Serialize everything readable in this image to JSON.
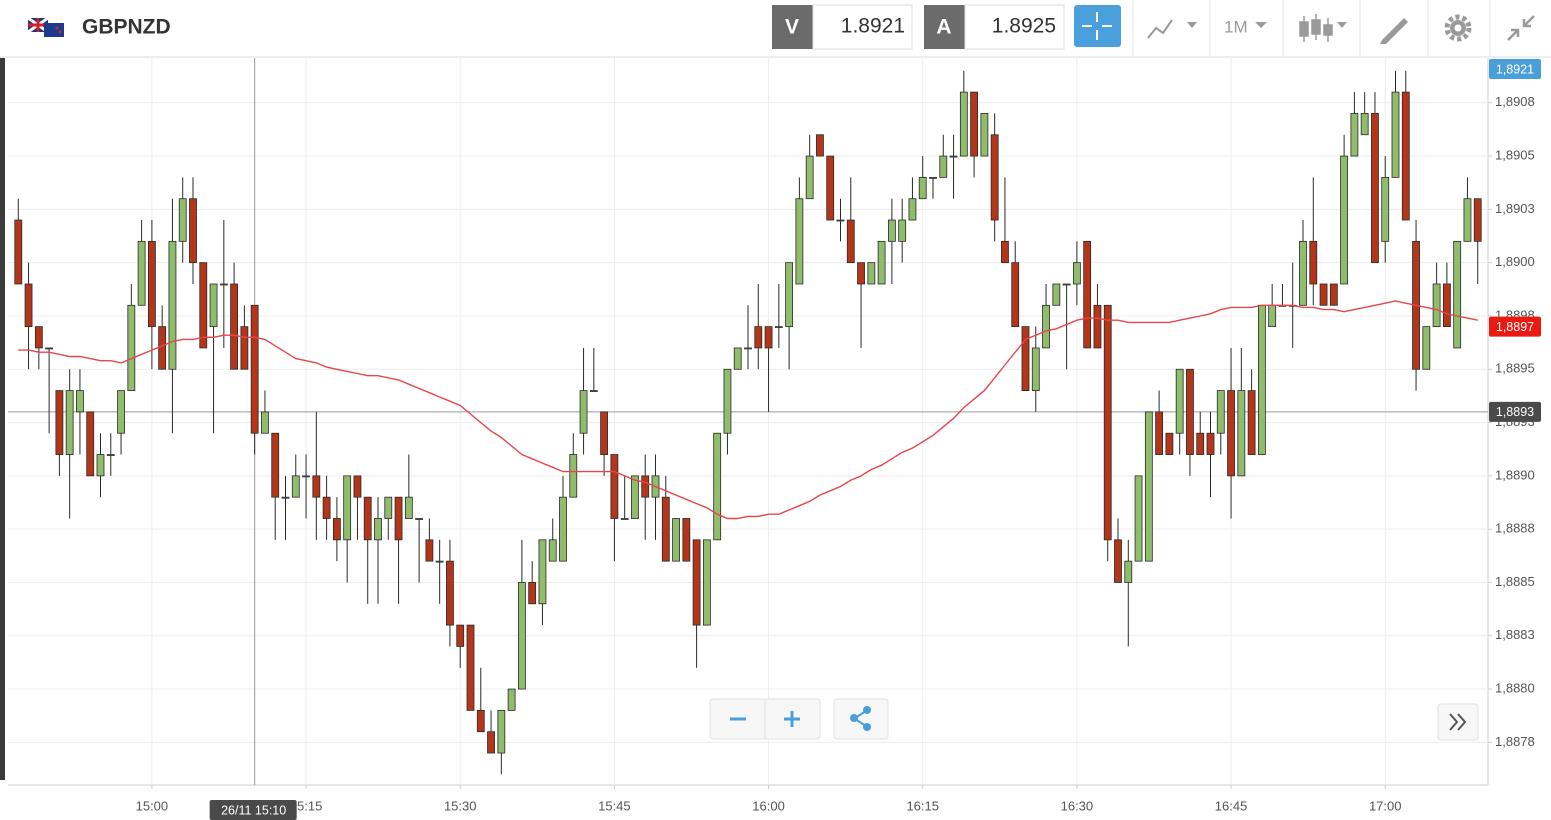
{
  "header": {
    "symbol": "GBPNZD",
    "sell_label": "V",
    "sell_price": "1.8921",
    "buy_label": "A",
    "buy_price": "1.8925",
    "timeframe": "1M"
  },
  "chart_data": {
    "type": "candlestick",
    "x": [
      "14:47",
      "14:48",
      "14:49",
      "14:50",
      "14:51",
      "14:52",
      "14:53",
      "14:54",
      "14:55",
      "14:56",
      "14:57",
      "14:58",
      "14:59",
      "15:00",
      "15:01",
      "15:02",
      "15:03",
      "15:04",
      "15:05",
      "15:06",
      "15:07",
      "15:08",
      "15:09",
      "15:10",
      "15:11",
      "15:12",
      "15:13",
      "15:14",
      "15:15",
      "15:16",
      "15:17",
      "15:18",
      "15:19",
      "15:20",
      "15:21",
      "15:22",
      "15:23",
      "15:24",
      "15:25",
      "15:26",
      "15:27",
      "15:28",
      "15:29",
      "15:30",
      "15:31",
      "15:32",
      "15:33",
      "15:34",
      "15:35",
      "15:36",
      "15:37",
      "15:38",
      "15:39",
      "15:40",
      "15:41",
      "15:42",
      "15:43",
      "15:44",
      "15:45",
      "15:46",
      "15:47",
      "15:48",
      "15:49",
      "15:50",
      "15:51",
      "15:52",
      "15:53",
      "15:54",
      "15:55",
      "15:56",
      "15:57",
      "15:58",
      "15:59",
      "16:00",
      "16:01",
      "16:02",
      "16:03",
      "16:04",
      "16:05",
      "16:06",
      "16:07",
      "16:08",
      "16:09",
      "16:10",
      "16:11",
      "16:12",
      "16:13",
      "16:14",
      "16:15",
      "16:16",
      "16:17",
      "16:18",
      "16:19",
      "16:20",
      "16:21",
      "16:22",
      "16:23",
      "16:24",
      "16:25",
      "16:26",
      "16:27",
      "16:28",
      "16:29",
      "16:30",
      "16:31",
      "16:32",
      "16:33",
      "16:34",
      "16:35",
      "16:36",
      "16:37",
      "16:38",
      "16:39",
      "16:40",
      "16:41",
      "16:42",
      "16:43",
      "16:44",
      "16:45",
      "16:46",
      "16:47",
      "16:48",
      "16:49",
      "16:50",
      "16:51",
      "16:52",
      "16:53",
      "16:54",
      "16:55",
      "16:56",
      "16:57",
      "16:58",
      "16:59",
      "17:00",
      "17:01",
      "17:02",
      "17:03",
      "17:04",
      "17:05",
      "17:06",
      "17:07",
      "17:08",
      "17:09"
    ],
    "open": [
      1.8902,
      1.8899,
      1.8897,
      1.8896,
      1.8894,
      1.8891,
      1.8893,
      1.8893,
      1.889,
      1.8891,
      1.8892,
      1.8894,
      1.8898,
      1.8901,
      1.8897,
      1.8895,
      1.8901,
      1.8903,
      1.89,
      1.8897,
      1.8899,
      1.8899,
      1.8897,
      1.8898,
      1.8892,
      1.8892,
      1.8889,
      1.8889,
      1.889,
      1.889,
      1.8889,
      1.8888,
      1.8887,
      1.889,
      1.8889,
      1.8887,
      1.8888,
      1.8889,
      1.8888,
      1.8888,
      1.8887,
      1.8886,
      1.8886,
      1.8883,
      1.8883,
      1.8879,
      1.8878,
      1.8877,
      1.8879,
      1.888,
      1.8885,
      1.8884,
      1.8886,
      1.8886,
      1.8889,
      1.8892,
      1.8894,
      1.8893,
      1.8891,
      1.8888,
      1.8888,
      1.889,
      1.8889,
      1.8889,
      1.8886,
      1.8888,
      1.8887,
      1.8883,
      1.8887,
      1.8892,
      1.8895,
      1.8896,
      1.8897,
      1.8897,
      1.8897,
      1.8897,
      1.8899,
      1.8903,
      1.8906,
      1.8905,
      1.8902,
      1.8902,
      1.89,
      1.8899,
      1.8899,
      1.8901,
      1.8901,
      1.8902,
      1.8903,
      1.8904,
      1.8904,
      1.8905,
      1.8905,
      1.8908,
      1.8905,
      1.8906,
      1.8901,
      1.89,
      1.8897,
      1.8894,
      1.8896,
      1.8898,
      1.8899,
      1.8899,
      1.8901,
      1.8898,
      1.8898,
      1.8887,
      1.8885,
      1.8886,
      1.8886,
      1.8893,
      1.8892,
      1.8892,
      1.8895,
      1.8892,
      1.8892,
      1.8892,
      1.8894,
      1.889,
      1.8894,
      1.8891,
      1.8897,
      1.8898,
      1.8898,
      1.8898,
      1.8901,
      1.8899,
      1.8899,
      1.8899,
      1.8905,
      1.8906,
      1.8907,
      1.8901,
      1.8904,
      1.8908,
      1.8901,
      1.8895,
      1.8897,
      1.8899,
      1.8896,
      1.8901,
      1.8903
    ],
    "high": [
      1.8903,
      1.89,
      1.8897,
      1.8896,
      1.8894,
      1.8895,
      1.8895,
      1.8893,
      1.8892,
      1.8892,
      1.8894,
      1.8899,
      1.8902,
      1.8902,
      1.8898,
      1.8903,
      1.8904,
      1.8904,
      1.89,
      1.8899,
      1.8902,
      1.89,
      1.8898,
      1.8898,
      1.8894,
      1.8892,
      1.889,
      1.8891,
      1.8891,
      1.8893,
      1.889,
      1.8889,
      1.889,
      1.889,
      1.8889,
      1.8889,
      1.8889,
      1.8889,
      1.8891,
      1.8888,
      1.8888,
      1.8887,
      1.8887,
      1.8883,
      1.8883,
      1.8881,
      1.8879,
      1.8879,
      1.888,
      1.8887,
      1.8886,
      1.8887,
      1.8888,
      1.889,
      1.8892,
      1.8896,
      1.8896,
      1.8893,
      1.8891,
      1.889,
      1.889,
      1.8891,
      1.8891,
      1.889,
      1.8888,
      1.8888,
      1.8887,
      1.8887,
      1.8892,
      1.8895,
      1.8896,
      1.8898,
      1.8899,
      1.8897,
      1.8899,
      1.89,
      1.8904,
      1.8906,
      1.8906,
      1.8905,
      1.8903,
      1.8904,
      1.89,
      1.89,
      1.8901,
      1.8903,
      1.8903,
      1.8904,
      1.8905,
      1.8904,
      1.8906,
      1.8906,
      1.8909,
      1.8908,
      1.8907,
      1.8907,
      1.8904,
      1.8901,
      1.8897,
      1.8897,
      1.8899,
      1.8899,
      1.8899,
      1.8901,
      1.8901,
      1.8899,
      1.8898,
      1.8888,
      1.8887,
      1.889,
      1.8893,
      1.8894,
      1.8892,
      1.8895,
      1.8895,
      1.8893,
      1.8893,
      1.8894,
      1.8896,
      1.8896,
      1.8895,
      1.8898,
      1.8899,
      1.8899,
      1.89,
      1.8902,
      1.8904,
      1.8899,
      1.8899,
      1.8906,
      1.8908,
      1.8908,
      1.8908,
      1.8905,
      1.8909,
      1.8909,
      1.8902,
      1.8897,
      1.89,
      1.89,
      1.8901,
      1.8904,
      1.8903
    ],
    "low": [
      1.8899,
      1.8895,
      1.8895,
      1.8892,
      1.889,
      1.8888,
      1.8891,
      1.889,
      1.8889,
      1.889,
      1.8891,
      1.8894,
      1.8898,
      1.8895,
      1.8895,
      1.8892,
      1.89,
      1.8899,
      1.8896,
      1.8892,
      1.8896,
      1.8895,
      1.8895,
      1.8891,
      1.8892,
      1.8887,
      1.8887,
      1.8889,
      1.8888,
      1.8887,
      1.8887,
      1.8886,
      1.8885,
      1.8887,
      1.8884,
      1.8884,
      1.8887,
      1.8884,
      1.8888,
      1.8885,
      1.8886,
      1.8884,
      1.8882,
      1.8881,
      1.8879,
      1.8878,
      1.8877,
      1.8876,
      1.8879,
      1.888,
      1.8884,
      1.8883,
      1.8886,
      1.8886,
      1.8889,
      1.8891,
      1.8894,
      1.889,
      1.8886,
      1.8888,
      1.8888,
      1.8887,
      1.8887,
      1.8886,
      1.8886,
      1.8886,
      1.8881,
      1.8883,
      1.8887,
      1.8891,
      1.8895,
      1.8895,
      1.8895,
      1.8893,
      1.8896,
      1.8895,
      1.8899,
      1.8903,
      1.8905,
      1.8902,
      1.8901,
      1.89,
      1.8896,
      1.8899,
      1.8899,
      1.8899,
      1.89,
      1.8902,
      1.8903,
      1.8903,
      1.8904,
      1.8903,
      1.8905,
      1.8904,
      1.8905,
      1.8901,
      1.89,
      1.8897,
      1.8894,
      1.8893,
      1.8896,
      1.8898,
      1.8895,
      1.8898,
      1.8896,
      1.8896,
      1.8886,
      1.8885,
      1.8882,
      1.8886,
      1.8886,
      1.8891,
      1.8891,
      1.8891,
      1.889,
      1.8891,
      1.8889,
      1.8891,
      1.8888,
      1.889,
      1.8891,
      1.8891,
      1.8897,
      1.8898,
      1.8896,
      1.8898,
      1.8898,
      1.8898,
      1.8898,
      1.8899,
      1.8905,
      1.8906,
      1.89,
      1.89,
      1.8904,
      1.8902,
      1.8894,
      1.8895,
      1.8897,
      1.8897,
      1.8896,
      1.8901,
      1.8899
    ],
    "close": [
      1.8899,
      1.8897,
      1.8896,
      1.8896,
      1.8891,
      1.8894,
      1.8894,
      1.889,
      1.8891,
      1.8891,
      1.8894,
      1.8898,
      1.8901,
      1.8897,
      1.8895,
      1.8901,
      1.8903,
      1.89,
      1.8896,
      1.8899,
      1.8899,
      1.8895,
      1.8895,
      1.8892,
      1.8893,
      1.8889,
      1.8889,
      1.889,
      1.889,
      1.8889,
      1.8888,
      1.8887,
      1.889,
      1.8889,
      1.8887,
      1.8888,
      1.8889,
      1.8887,
      1.8889,
      1.8888,
      1.8886,
      1.8886,
      1.8883,
      1.8882,
      1.8879,
      1.8878,
      1.8877,
      1.8879,
      1.888,
      1.8885,
      1.8884,
      1.8887,
      1.8887,
      1.8889,
      1.8891,
      1.8894,
      1.8894,
      1.8891,
      1.8888,
      1.8888,
      1.889,
      1.8889,
      1.889,
      1.8886,
      1.8888,
      1.8886,
      1.8883,
      1.8887,
      1.8892,
      1.8895,
      1.8896,
      1.8896,
      1.8896,
      1.8896,
      1.8897,
      1.89,
      1.8903,
      1.8905,
      1.8905,
      1.8902,
      1.8902,
      1.89,
      1.8899,
      1.89,
      1.8901,
      1.8902,
      1.8902,
      1.8903,
      1.8904,
      1.8904,
      1.8905,
      1.8905,
      1.8908,
      1.8905,
      1.8907,
      1.8902,
      1.89,
      1.8897,
      1.8894,
      1.8896,
      1.8898,
      1.8899,
      1.8899,
      1.89,
      1.8896,
      1.8896,
      1.8887,
      1.8885,
      1.8886,
      1.889,
      1.8893,
      1.8891,
      1.8891,
      1.8895,
      1.8891,
      1.8891,
      1.8891,
      1.8894,
      1.889,
      1.8894,
      1.8891,
      1.8898,
      1.8898,
      1.8898,
      1.8898,
      1.8901,
      1.8899,
      1.8898,
      1.8898,
      1.8905,
      1.8907,
      1.8907,
      1.89,
      1.8904,
      1.8908,
      1.8902,
      1.8895,
      1.8897,
      1.8899,
      1.8897,
      1.8901,
      1.8903,
      1.8901
    ],
    "colors": {
      "up": "#8fbd6c",
      "down": "#b3361b",
      "outline": "#2a2a2a"
    },
    "moving_average": {
      "color": "#e8454b",
      "values": [
        1.88959,
        1.88959,
        1.88958,
        1.88958,
        1.88957,
        1.88956,
        1.88956,
        1.88955,
        1.88954,
        1.88954,
        1.88953,
        1.88955,
        1.88957,
        1.88959,
        1.88961,
        1.88963,
        1.88964,
        1.88964,
        1.88965,
        1.88965,
        1.88966,
        1.88966,
        1.88965,
        1.88965,
        1.88964,
        1.88961,
        1.88958,
        1.88955,
        1.88954,
        1.88953,
        1.88951,
        1.8895,
        1.88949,
        1.88948,
        1.88947,
        1.88947,
        1.88946,
        1.88945,
        1.88943,
        1.88941,
        1.88939,
        1.88937,
        1.88935,
        1.88933,
        1.88929,
        1.88925,
        1.88921,
        1.88918,
        1.88914,
        1.8891,
        1.88908,
        1.88906,
        1.88904,
        1.88902,
        1.88902,
        1.88902,
        1.88902,
        1.88902,
        1.88902,
        1.889,
        1.88898,
        1.88897,
        1.88895,
        1.88893,
        1.88891,
        1.88889,
        1.88887,
        1.88885,
        1.88882,
        1.8888,
        1.8888,
        1.88881,
        1.88881,
        1.88882,
        1.88882,
        1.88884,
        1.88886,
        1.88888,
        1.88891,
        1.88893,
        1.88895,
        1.88898,
        1.889,
        1.88903,
        1.88905,
        1.88908,
        1.88911,
        1.88913,
        1.88916,
        1.88919,
        1.88923,
        1.88927,
        1.88932,
        1.88936,
        1.8894,
        1.88946,
        1.88952,
        1.88958,
        1.88964,
        1.88966,
        1.88968,
        1.88969,
        1.88971,
        1.88973,
        1.88974,
        1.88974,
        1.88973,
        1.88973,
        1.88972,
        1.88972,
        1.88972,
        1.88972,
        1.88972,
        1.88973,
        1.88974,
        1.88975,
        1.88976,
        1.88978,
        1.88979,
        1.88979,
        1.88979,
        1.8898,
        1.8898,
        1.8898,
        1.8898,
        1.88979,
        1.88979,
        1.88978,
        1.88978,
        1.88977,
        1.88978,
        1.88979,
        1.8898,
        1.88981,
        1.88982,
        1.88981,
        1.8898,
        1.88979,
        1.88978,
        1.88976,
        1.88975,
        1.88974,
        1.88973
      ]
    },
    "xlim": [
      "14:46",
      "17:10"
    ],
    "xticks": [
      "15:00",
      "15:15",
      "15:30",
      "15:45",
      "16:00",
      "16:15",
      "16:30",
      "16:45",
      "17:00"
    ],
    "ylim": [
      1.88755,
      1.89096
    ],
    "yticks": [
      {
        "value": 1.89075,
        "label": "1,8908"
      },
      {
        "value": 1.8905,
        "label": "1,8905"
      },
      {
        "value": 1.89025,
        "label": "1,8903"
      },
      {
        "value": 1.89,
        "label": "1,8900"
      },
      {
        "value": 1.88975,
        "label": "1,8898"
      },
      {
        "value": 1.8895,
        "label": "1,8895"
      },
      {
        "value": 1.88925,
        "label": "1,8893"
      },
      {
        "value": 1.889,
        "label": "1,8890"
      },
      {
        "value": 1.88875,
        "label": "1,8888"
      },
      {
        "value": 1.8885,
        "label": "1,8885"
      },
      {
        "value": 1.88825,
        "label": "1,8883"
      },
      {
        "value": 1.888,
        "label": "1,8880"
      },
      {
        "value": 1.88775,
        "label": "1,8878"
      }
    ],
    "grid": true,
    "bid_tag": {
      "value": 1.8921,
      "label": "1,8921",
      "color": "#4a9fd8"
    },
    "last_price": {
      "value": 1.8897,
      "label": "1,8897",
      "color": "#ea1a10"
    },
    "crosshair": {
      "value": 1.8893,
      "label": "1,8893",
      "x": "15:10",
      "x_label": "26/11 15:10",
      "color": "#4a4a4a"
    }
  }
}
